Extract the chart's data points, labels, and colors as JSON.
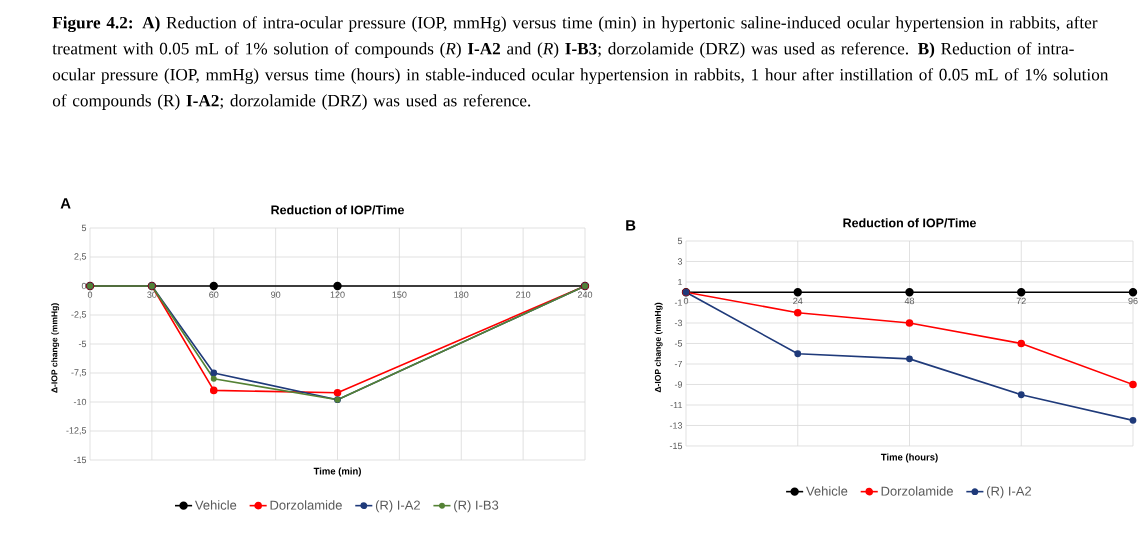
{
  "chart_data": [
    {
      "type": "line",
      "title": "Reduction of IOP/Time",
      "xlabel": "Time (min)",
      "ylabel": "Δ-IOP change (mmHg)",
      "annotations": [
        "**Figure 4.2: A)** Reduction of intra-ocular pressure (IOP, mmHg) versus time (min) in hypertonic saline-induced ocular hypertension in rabbits, after treatment with 0.05 mL of 1% solution of compounds (*R*) **I-A2** and (*R*) **I-B3**; dorzolamide (DRZ) was used as reference. **B)** Reduction of intra-ocular pressure (IOP, mmHg) versus time (hours) in stable-induced ocular hypertension in rabbits, 1 hour after instillation of 0.05 mL of 1% solution of compounds (R) **I-A2**; dorzolamide (DRZ) was used as reference.",
        "A"
      ],
      "x": [
        0,
        30,
        60,
        120,
        240
      ],
      "series": [
        {
          "name": "Vehicle",
          "color": "#000000",
          "values": [
            0,
            0,
            0,
            0,
            0
          ]
        },
        {
          "name": "Dorzolamide",
          "color": "#ff0000",
          "values": [
            0,
            0,
            -9,
            -9.2,
            0
          ]
        },
        {
          "name": "(R) I-A2",
          "color": "#1f3a7a",
          "values": [
            0,
            0,
            -7.5,
            -9.8,
            0
          ]
        },
        {
          "name": "(R) I-B3",
          "color": "#548235",
          "values": [
            0,
            0,
            -8,
            -9.8,
            0
          ]
        }
      ],
      "xlim": [
        0,
        240
      ],
      "xticks": [
        0,
        30,
        60,
        90,
        120,
        150,
        180,
        210,
        240
      ],
      "ylim": [
        -15,
        5
      ],
      "yticks": [
        -15,
        {
          "value": -12.5,
          "label": "-12,5"
        },
        -10,
        {
          "value": -7.5,
          "label": "-7,5"
        },
        -5,
        {
          "value": -2.5,
          "label": "-2,5"
        },
        0,
        {
          "value": 2.5,
          "label": "2,5"
        },
        5
      ],
      "grid": true,
      "legend": "bottom",
      "marker": "circle"
    },
    {
      "type": "line",
      "title": "Reduction of IOP/Time",
      "xlabel": "Time (hours)",
      "ylabel": "Δ-IOP change (mmHg)",
      "annotations": [
        "B"
      ],
      "x": [
        0,
        24,
        48,
        72,
        96
      ],
      "series": [
        {
          "name": "Vehicle",
          "color": "#000000",
          "values": [
            0,
            0,
            0,
            0,
            0
          ]
        },
        {
          "name": "Dorzolamide",
          "color": "#ff0000",
          "values": [
            0,
            -2,
            -3,
            -5,
            -9
          ]
        },
        {
          "name": "(R) I-A2",
          "color": "#1f3a7a",
          "values": [
            0,
            -6,
            -6.5,
            -10,
            -12.5
          ]
        }
      ],
      "xlim": [
        0,
        96
      ],
      "xticks": [
        0,
        24,
        48,
        72,
        96
      ],
      "ylim": [
        -15,
        5
      ],
      "yticks": [
        -15,
        -13,
        -11,
        -9,
        -7,
        -5,
        -3,
        -1,
        1,
        3,
        5
      ],
      "grid": true,
      "legend": "bottom",
      "marker": "circle"
    }
  ]
}
